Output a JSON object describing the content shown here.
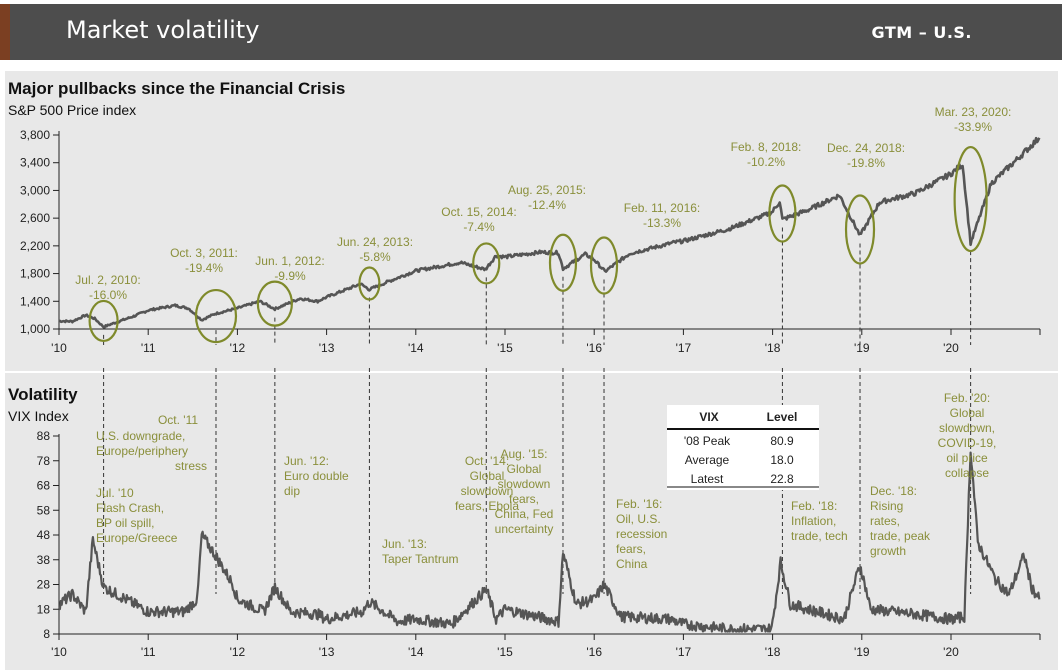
{
  "header": {
    "title": "Market volatility",
    "tag": "GTM – U.S."
  },
  "colors": {
    "header_bg": "#4d4d4d",
    "arrow": "#7b3f22",
    "annotation": "#8a8f3b",
    "line": "#555555"
  },
  "chart_data": [
    {
      "type": "line",
      "title": "Major pullbacks since the Financial Crisis",
      "subtitle": "S&P 500 Price index",
      "x_tick_labels": [
        "'10",
        "'11",
        "'12",
        "'13",
        "'14",
        "'15",
        "'16",
        "'17",
        "'18",
        "'19",
        "'20"
      ],
      "y_tick_labels": [
        "1,000",
        "1,400",
        "1,800",
        "2,200",
        "2,600",
        "3,000",
        "3,400",
        "3,800"
      ],
      "ylim": [
        1000,
        3900
      ],
      "xlim": [
        2010.0,
        2021.0
      ],
      "series": [
        {
          "points": [
            [
              2010.0,
              1115
            ],
            [
              2010.15,
              1110
            ],
            [
              2010.3,
              1200
            ],
            [
              2010.4,
              1150
            ],
            [
              2010.5,
              1030
            ],
            [
              2010.65,
              1100
            ],
            [
              2010.85,
              1190
            ],
            [
              2011.0,
              1270
            ],
            [
              2011.3,
              1340
            ],
            [
              2011.45,
              1300
            ],
            [
              2011.6,
              1130
            ],
            [
              2011.75,
              1220
            ],
            [
              2012.0,
              1300
            ],
            [
              2012.25,
              1400
            ],
            [
              2012.42,
              1290
            ],
            [
              2012.7,
              1440
            ],
            [
              2012.9,
              1400
            ],
            [
              2013.0,
              1460
            ],
            [
              2013.38,
              1650
            ],
            [
              2013.48,
              1570
            ],
            [
              2013.7,
              1690
            ],
            [
              2014.0,
              1840
            ],
            [
              2014.5,
              1960
            ],
            [
              2014.78,
              1860
            ],
            [
              2014.9,
              2060
            ],
            [
              2015.0,
              2040
            ],
            [
              2015.4,
              2110
            ],
            [
              2015.6,
              2100
            ],
            [
              2015.65,
              1870
            ],
            [
              2015.9,
              2080
            ],
            [
              2016.0,
              2000
            ],
            [
              2016.12,
              1830
            ],
            [
              2016.4,
              2090
            ],
            [
              2016.9,
              2250
            ],
            [
              2017.0,
              2270
            ],
            [
              2017.5,
              2440
            ],
            [
              2017.99,
              2680
            ],
            [
              2018.08,
              2840
            ],
            [
              2018.11,
              2580
            ],
            [
              2018.4,
              2720
            ],
            [
              2018.75,
              2930
            ],
            [
              2018.98,
              2350
            ],
            [
              2019.2,
              2830
            ],
            [
              2019.6,
              2960
            ],
            [
              2020.0,
              3240
            ],
            [
              2020.13,
              3380
            ],
            [
              2020.22,
              2240
            ],
            [
              2020.45,
              3100
            ],
            [
              2020.7,
              3400
            ],
            [
              2020.99,
              3760
            ]
          ]
        }
      ],
      "pullbacks": [
        {
          "date": "Jul. 2, 2010:",
          "drop": "-16.0%",
          "x": 2010.5,
          "y": 1030
        },
        {
          "date": "Oct. 3, 2011:",
          "drop": "-19.4%",
          "x": 2011.76,
          "y": 1100
        },
        {
          "date": "Jun. 1, 2012:",
          "drop": "-9.9%",
          "x": 2012.42,
          "y": 1280
        },
        {
          "date": "Jun. 24, 2013:",
          "drop": "-5.8%",
          "x": 2013.48,
          "y": 1570
        },
        {
          "date": "Oct. 15, 2014:",
          "drop": "-7.4%",
          "x": 2014.79,
          "y": 1860
        },
        {
          "date": "Aug. 25, 2015:",
          "drop": "-12.4%",
          "x": 2015.65,
          "y": 1870
        },
        {
          "date": "Feb. 11, 2016:",
          "drop": "-13.3%",
          "x": 2016.11,
          "y": 1830
        },
        {
          "date": "Feb. 8, 2018:",
          "drop": "-10.2%",
          "x": 2018.11,
          "y": 2580
        },
        {
          "date": "Dec. 24, 2018:",
          "drop": "-19.8%",
          "x": 2018.98,
          "y": 2350
        },
        {
          "date": "Mar. 23, 2020:",
          "drop": "-33.9%",
          "x": 2020.22,
          "y": 2240
        }
      ]
    },
    {
      "type": "line",
      "title": "Volatility",
      "subtitle": "VIX Index",
      "x_tick_labels": [
        "'10",
        "'11",
        "'12",
        "'13",
        "'14",
        "'15",
        "'16",
        "'17",
        "'18",
        "'19",
        "'20"
      ],
      "y_tick_labels": [
        "8",
        "18",
        "28",
        "38",
        "48",
        "58",
        "68",
        "78",
        "88"
      ],
      "ylim": [
        8,
        88
      ],
      "xlim": [
        2010.0,
        2021.0
      ],
      "series": [
        {
          "points": [
            [
              2010.0,
              20
            ],
            [
              2010.15,
              24
            ],
            [
              2010.3,
              17
            ],
            [
              2010.38,
              46
            ],
            [
              2010.5,
              27
            ],
            [
              2010.8,
              21
            ],
            [
              2011.0,
              17
            ],
            [
              2011.4,
              17
            ],
            [
              2011.55,
              22
            ],
            [
              2011.6,
              48
            ],
            [
              2011.75,
              40
            ],
            [
              2011.95,
              28
            ],
            [
              2012.0,
              22
            ],
            [
              2012.3,
              17
            ],
            [
              2012.42,
              27
            ],
            [
              2012.6,
              17
            ],
            [
              2012.9,
              16
            ],
            [
              2013.0,
              14
            ],
            [
              2013.4,
              17
            ],
            [
              2013.48,
              21
            ],
            [
              2013.8,
              13
            ],
            [
              2014.0,
              14
            ],
            [
              2014.4,
              12
            ],
            [
              2014.79,
              26
            ],
            [
              2014.9,
              14
            ],
            [
              2015.0,
              18
            ],
            [
              2015.6,
              13
            ],
            [
              2015.65,
              41
            ],
            [
              2015.8,
              20
            ],
            [
              2016.0,
              22
            ],
            [
              2016.11,
              28
            ],
            [
              2016.3,
              15
            ],
            [
              2016.85,
              14
            ],
            [
              2017.0,
              12
            ],
            [
              2017.5,
              10
            ],
            [
              2017.99,
              10
            ],
            [
              2018.09,
              37
            ],
            [
              2018.2,
              20
            ],
            [
              2018.8,
              14
            ],
            [
              2018.98,
              36
            ],
            [
              2019.1,
              18
            ],
            [
              2019.6,
              16
            ],
            [
              2020.0,
              14
            ],
            [
              2020.15,
              15
            ],
            [
              2020.22,
              83
            ],
            [
              2020.3,
              45
            ],
            [
              2020.5,
              30
            ],
            [
              2020.65,
              24
            ],
            [
              2020.82,
              40
            ],
            [
              2020.9,
              27
            ],
            [
              2020.99,
              22
            ]
          ]
        }
      ],
      "events": [
        {
          "lines": [
            "U.S. downgrade,",
            "Europe/periphery",
            "stress"
          ],
          "title": "Oct. '11",
          "x": 2011.6
        },
        {
          "lines": [
            "Flash Crash,",
            "BP oil spill,",
            "Europe/Greece"
          ],
          "title": "Jul. '10",
          "x": 2010.38
        },
        {
          "lines": [
            "Euro double",
            "dip"
          ],
          "title": "Jun. '12:",
          "x": 2012.42
        },
        {
          "lines": [
            "Taper Tantrum"
          ],
          "title": "Jun. '13:",
          "x": 2013.48
        },
        {
          "lines": [
            "Global",
            "slowdown",
            "fears, Ebola"
          ],
          "title": "Oct. '14:",
          "x": 2014.79
        },
        {
          "lines": [
            "Global",
            "slowdown",
            "fears,",
            "China, Fed",
            "uncertainty"
          ],
          "title": "Aug. '15:",
          "x": 2015.65
        },
        {
          "lines": [
            "Oil, U.S.",
            "recession",
            "fears,",
            "China"
          ],
          "title": "Feb. '16:",
          "x": 2016.11
        },
        {
          "lines": [
            "Inflation,",
            "trade, tech"
          ],
          "title": "Feb. '18:",
          "x": 2018.09
        },
        {
          "lines": [
            "Rising",
            "rates,",
            "trade, peak",
            "growth"
          ],
          "title": "Dec. '18:",
          "x": 2018.98
        },
        {
          "lines": [
            "Global",
            "slowdown,",
            "COVID-19,",
            "oil price",
            "collapse"
          ],
          "title": "Feb. '20:",
          "x": 2020.22
        }
      ],
      "table": {
        "headers": [
          "VIX",
          "Level"
        ],
        "rows": [
          [
            "'08 Peak",
            "80.9"
          ],
          [
            "Average",
            "18.0"
          ],
          [
            "Latest",
            "22.8"
          ]
        ]
      }
    }
  ]
}
